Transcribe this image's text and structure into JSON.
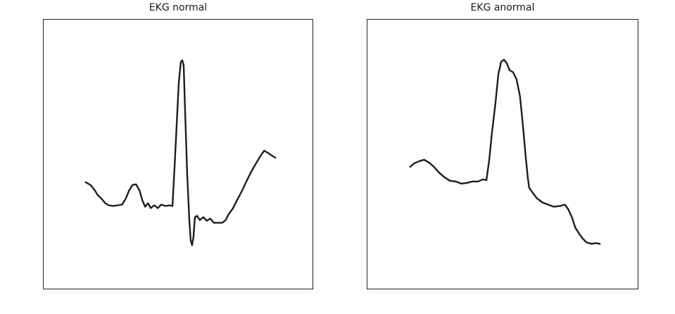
{
  "panels": [
    {
      "title": "EKG normal"
    },
    {
      "title": "EKG anormal"
    }
  ],
  "colors": {
    "trace": "#1c1c1c",
    "frame": "#222222",
    "background": "#ffffff"
  }
}
